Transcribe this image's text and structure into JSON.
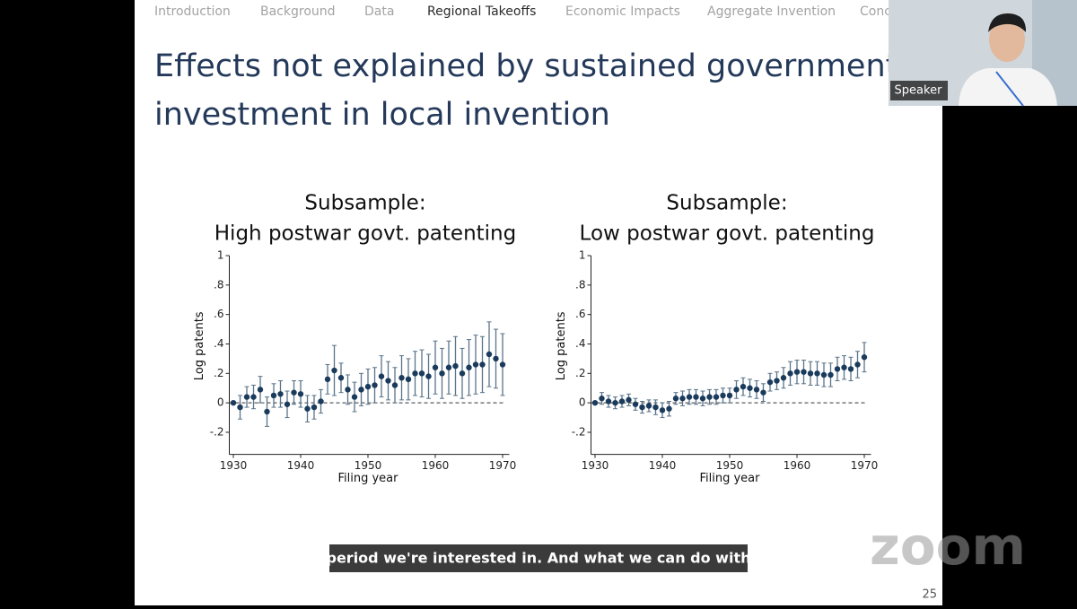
{
  "nav": [
    "Introduction",
    "Background",
    "Data",
    "Regional Takeoffs",
    "Economic Impacts",
    "Aggregate Invention",
    "Conc"
  ],
  "nav_active": 3,
  "slide_title": [
    "Effects not explained by sustained government",
    "investment in local invention"
  ],
  "speaker_label": "Speaker",
  "caption": "period we're interested in. And what we can do with",
  "watermark": "zoom",
  "slide_number": "25",
  "chart_data": [
    {
      "type": "scatter",
      "title": [
        "Subsample:",
        "High postwar govt. patenting"
      ],
      "y_label": "Log patents",
      "x_label": "Filing year",
      "x": [
        1930,
        1931,
        1932,
        1933,
        1934,
        1935,
        1936,
        1937,
        1938,
        1939,
        1940,
        1941,
        1942,
        1943,
        1944,
        1945,
        1946,
        1947,
        1948,
        1949,
        1950,
        1951,
        1952,
        1953,
        1954,
        1955,
        1956,
        1957,
        1958,
        1959,
        1960,
        1961,
        1962,
        1963,
        1964,
        1965,
        1966,
        1967,
        1968,
        1969,
        1970
      ],
      "values": [
        0,
        -0.03,
        0.04,
        0.04,
        0.09,
        -0.06,
        0.05,
        0.06,
        -0.01,
        0.07,
        0.06,
        -0.04,
        -0.03,
        0.01,
        0.16,
        0.22,
        0.17,
        0.09,
        0.04,
        0.09,
        0.11,
        0.12,
        0.18,
        0.15,
        0.12,
        0.17,
        0.16,
        0.2,
        0.2,
        0.18,
        0.24,
        0.2,
        0.24,
        0.25,
        0.2,
        0.24,
        0.26,
        0.26,
        0.33,
        0.3,
        0.26
      ],
      "errors": [
        0,
        0.08,
        0.07,
        0.08,
        0.09,
        0.1,
        0.08,
        0.09,
        0.09,
        0.08,
        0.09,
        0.09,
        0.08,
        0.08,
        0.1,
        0.17,
        0.1,
        0.1,
        0.1,
        0.11,
        0.12,
        0.12,
        0.14,
        0.13,
        0.12,
        0.15,
        0.14,
        0.15,
        0.16,
        0.15,
        0.18,
        0.17,
        0.18,
        0.2,
        0.17,
        0.19,
        0.2,
        0.19,
        0.22,
        0.2,
        0.21
      ],
      "color": "#1a3b5c",
      "error_color": "#5a7489",
      "xlim": [
        1929,
        1971
      ],
      "ylim": [
        -0.35,
        1
      ],
      "xticks": [
        1930,
        1940,
        1950,
        1960,
        1970
      ],
      "yticks": [
        {
          "value": -0.2,
          "label": "-.2"
        },
        0,
        {
          "value": 0.2,
          "label": ".2"
        },
        {
          "value": 0.4,
          "label": ".4"
        },
        {
          "value": 0.6,
          "label": ".6"
        },
        {
          "value": 0.8,
          "label": ".8"
        },
        1
      ],
      "zero_line": true
    },
    {
      "type": "scatter",
      "title": [
        "Subsample:",
        "Low postwar govt. patenting"
      ],
      "y_label": "Log patents",
      "x_label": "Filing year",
      "x": [
        1930,
        1931,
        1932,
        1933,
        1934,
        1935,
        1936,
        1937,
        1938,
        1939,
        1940,
        1941,
        1942,
        1943,
        1944,
        1945,
        1946,
        1947,
        1948,
        1949,
        1950,
        1951,
        1952,
        1953,
        1954,
        1955,
        1956,
        1957,
        1958,
        1959,
        1960,
        1961,
        1962,
        1963,
        1964,
        1965,
        1966,
        1967,
        1968,
        1969,
        1970
      ],
      "values": [
        0,
        0.03,
        0.01,
        0,
        0.01,
        0.02,
        -0.01,
        -0.03,
        -0.02,
        -0.03,
        -0.05,
        -0.04,
        0.03,
        0.03,
        0.04,
        0.04,
        0.03,
        0.04,
        0.04,
        0.05,
        0.05,
        0.09,
        0.11,
        0.1,
        0.09,
        0.07,
        0.14,
        0.15,
        0.17,
        0.2,
        0.21,
        0.21,
        0.2,
        0.2,
        0.19,
        0.19,
        0.23,
        0.24,
        0.23,
        0.26,
        0.31
      ],
      "errors": [
        0,
        0.04,
        0.04,
        0.04,
        0.04,
        0.04,
        0.04,
        0.04,
        0.04,
        0.05,
        0.05,
        0.05,
        0.04,
        0.05,
        0.05,
        0.05,
        0.05,
        0.05,
        0.05,
        0.05,
        0.05,
        0.06,
        0.06,
        0.06,
        0.06,
        0.06,
        0.06,
        0.06,
        0.07,
        0.08,
        0.08,
        0.08,
        0.08,
        0.08,
        0.08,
        0.08,
        0.08,
        0.08,
        0.08,
        0.09,
        0.1
      ],
      "color": "#1a3b5c",
      "error_color": "#5a7489",
      "xlim": [
        1929,
        1971
      ],
      "ylim": [
        -0.35,
        1
      ],
      "xticks": [
        1930,
        1940,
        1950,
        1960,
        1970
      ],
      "yticks": [
        {
          "value": -0.2,
          "label": "-.2"
        },
        0,
        {
          "value": 0.2,
          "label": ".2"
        },
        {
          "value": 0.4,
          "label": ".4"
        },
        {
          "value": 0.6,
          "label": ".6"
        },
        {
          "value": 0.8,
          "label": ".8"
        },
        1
      ],
      "zero_line": true
    }
  ]
}
